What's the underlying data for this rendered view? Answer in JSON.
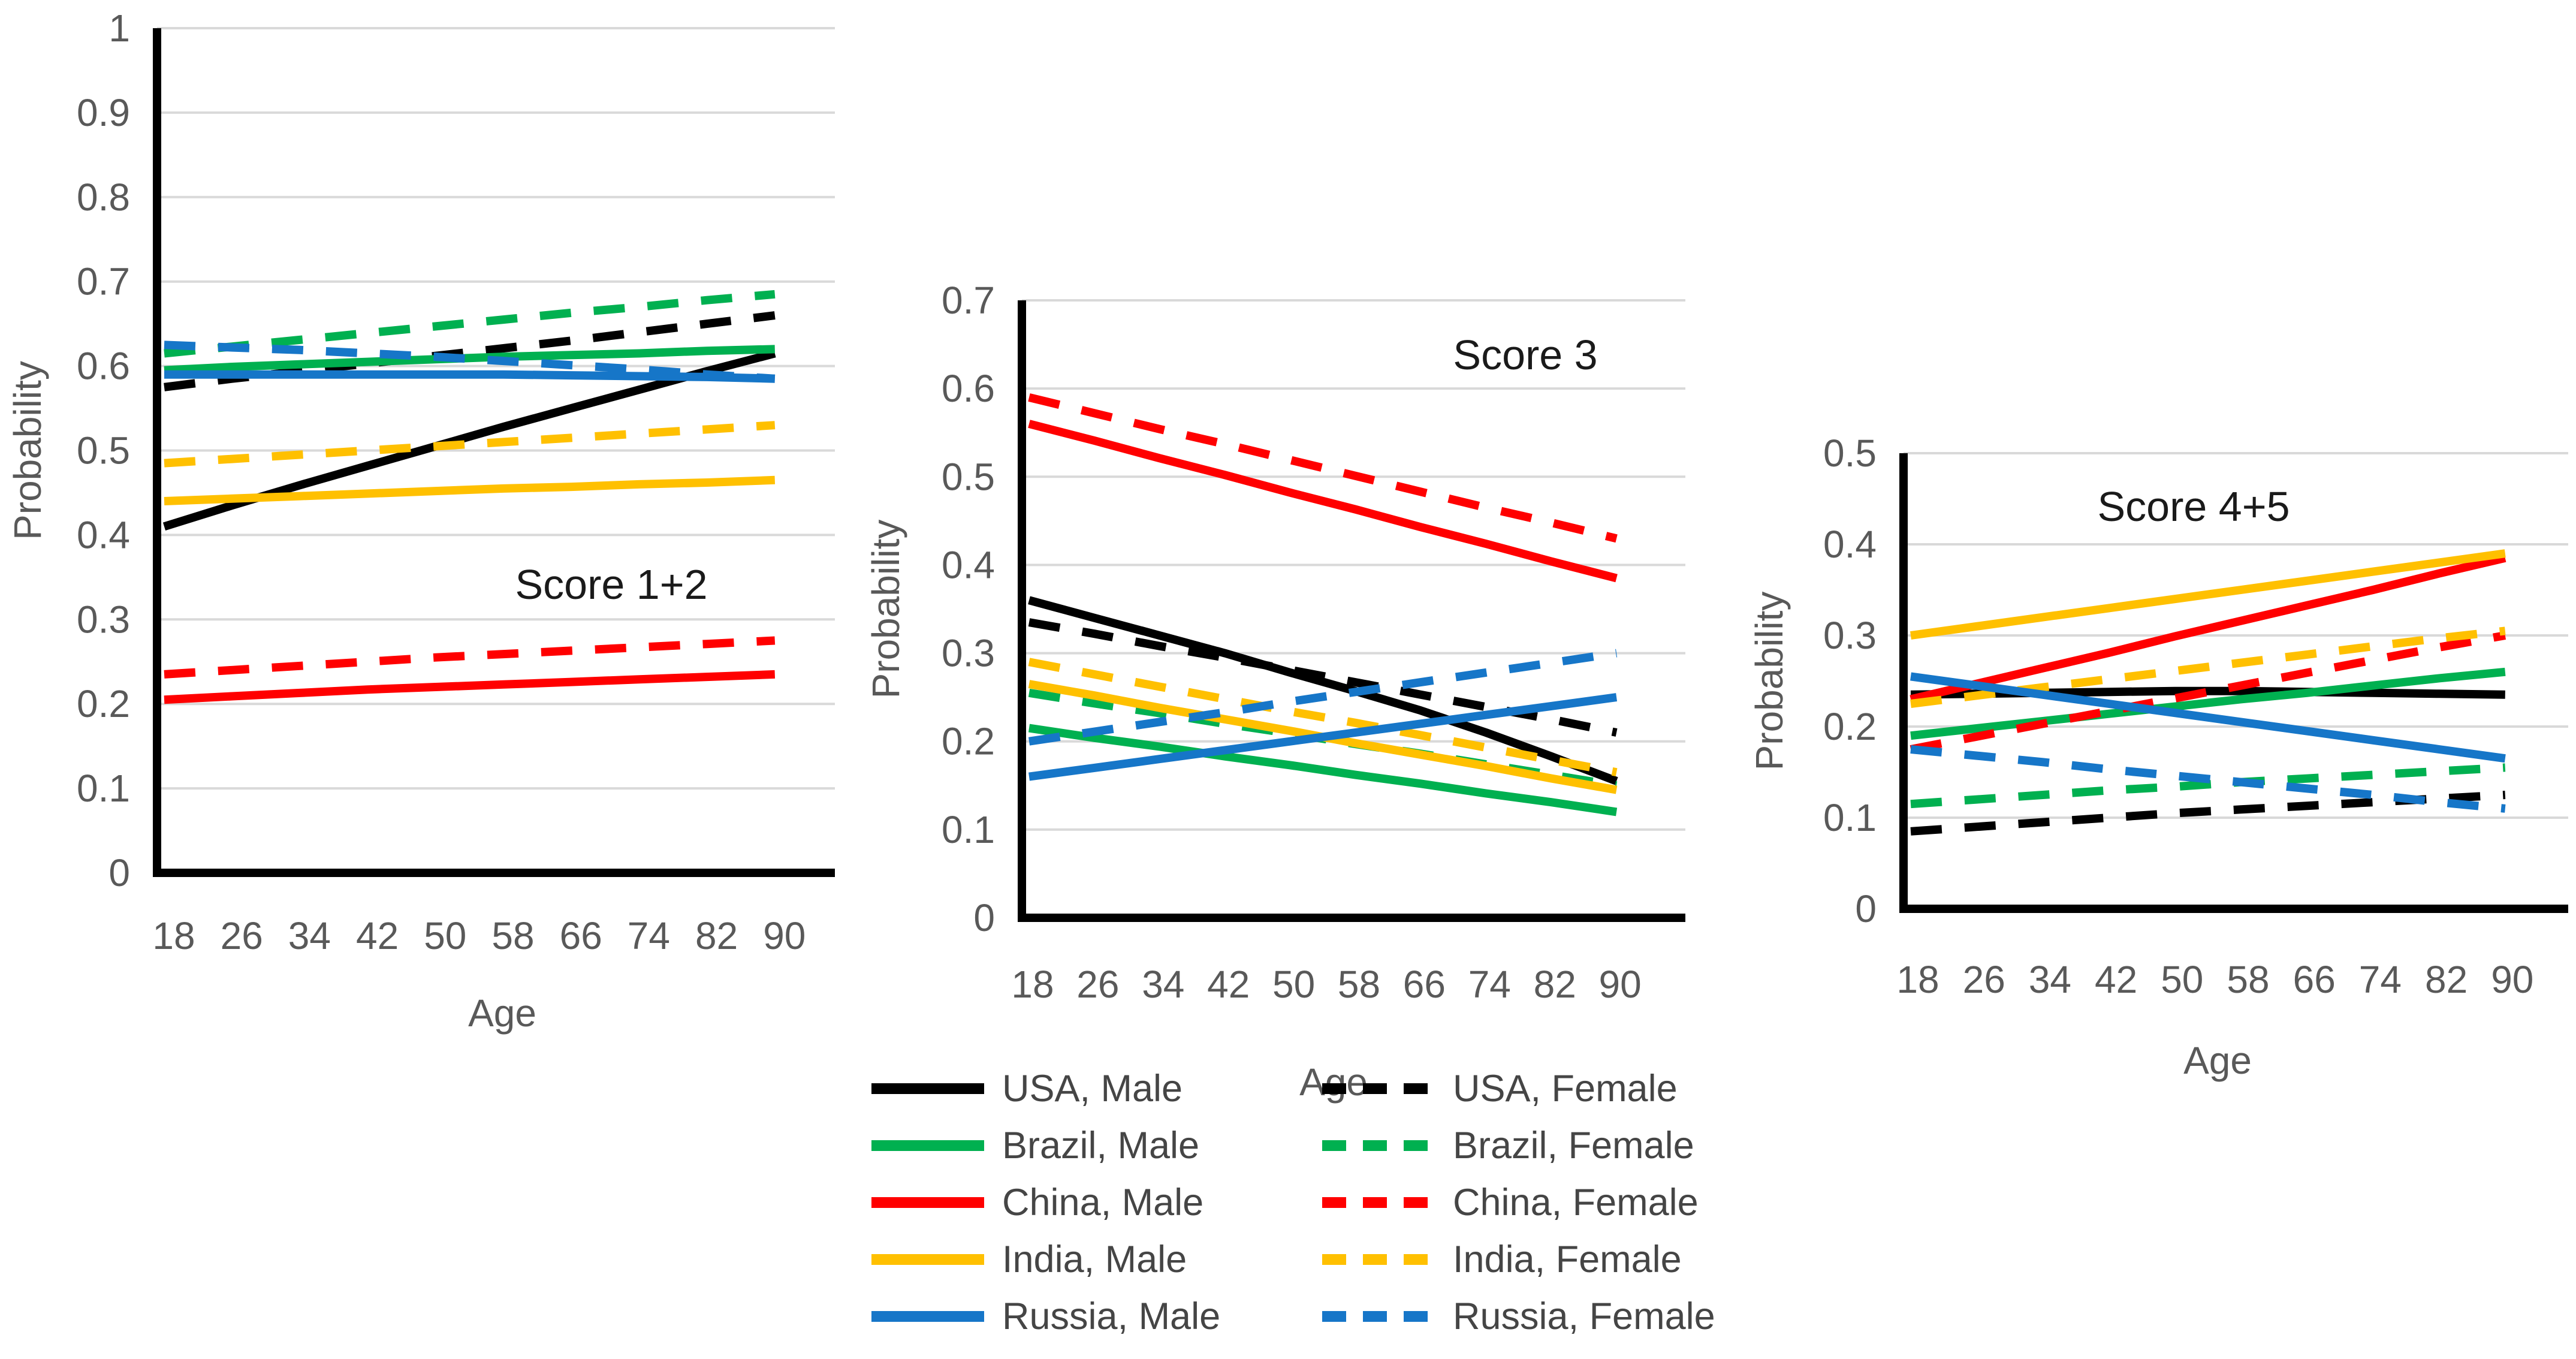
{
  "figure": {
    "background": "#ffffff",
    "gridline_color": "#d9d9d9",
    "axis_line_color": "#000000",
    "tick_label_color": "#595959",
    "title_color": "#1a1a1a",
    "legend_text_color": "#454545"
  },
  "chart_data": [
    {
      "type": "line",
      "title": "Score 1+2",
      "xlabel": "Age",
      "ylabel": "Probability",
      "x": [
        18,
        26,
        34,
        42,
        50,
        58,
        66,
        74,
        82,
        90
      ],
      "ylim": [
        0,
        1
      ],
      "ytick_labels": [
        "0",
        "0.1",
        "0.2",
        "0.3",
        "0.4",
        "0.5",
        "0.6",
        "0.7",
        "0.8",
        "0.9",
        "1"
      ],
      "grid": true,
      "legend_position": "below-figure",
      "series": [
        {
          "name": "USA, Male",
          "color": "#000000",
          "dash": false,
          "values": [
            0.41,
            0.435,
            0.459,
            0.482,
            0.505,
            0.528,
            0.55,
            0.572,
            0.594,
            0.615
          ]
        },
        {
          "name": "USA, Female",
          "color": "#000000",
          "dash": true,
          "values": [
            0.575,
            0.585,
            0.594,
            0.603,
            0.612,
            0.621,
            0.63,
            0.64,
            0.65,
            0.66
          ]
        },
        {
          "name": "Brazil, Male",
          "color": "#00B050",
          "dash": false,
          "values": [
            0.595,
            0.599,
            0.602,
            0.605,
            0.608,
            0.611,
            0.613,
            0.615,
            0.618,
            0.62
          ]
        },
        {
          "name": "Brazil, Female",
          "color": "#00B050",
          "dash": true,
          "values": [
            0.615,
            0.623,
            0.631,
            0.639,
            0.647,
            0.655,
            0.663,
            0.67,
            0.678,
            0.685
          ]
        },
        {
          "name": "China, Male",
          "color": "#FF0000",
          "dash": false,
          "values": [
            0.205,
            0.209,
            0.213,
            0.217,
            0.22,
            0.223,
            0.226,
            0.229,
            0.232,
            0.235
          ]
        },
        {
          "name": "China, Female",
          "color": "#FF0000",
          "dash": true,
          "values": [
            0.235,
            0.24,
            0.245,
            0.25,
            0.255,
            0.259,
            0.263,
            0.267,
            0.271,
            0.275
          ]
        },
        {
          "name": "India, Male",
          "color": "#FFC000",
          "dash": false,
          "values": [
            0.44,
            0.443,
            0.446,
            0.449,
            0.452,
            0.455,
            0.457,
            0.46,
            0.462,
            0.465
          ]
        },
        {
          "name": "India, Female",
          "color": "#FFC000",
          "dash": true,
          "values": [
            0.485,
            0.49,
            0.495,
            0.5,
            0.505,
            0.51,
            0.515,
            0.52,
            0.525,
            0.53
          ]
        },
        {
          "name": "Russia, Male",
          "color": "#1676C8",
          "dash": false,
          "values": [
            0.59,
            0.59,
            0.59,
            0.59,
            0.59,
            0.59,
            0.589,
            0.588,
            0.587,
            0.585
          ]
        },
        {
          "name": "Russia, Female",
          "color": "#1676C8",
          "dash": true,
          "values": [
            0.625,
            0.622,
            0.619,
            0.615,
            0.611,
            0.606,
            0.601,
            0.596,
            0.59,
            0.585
          ]
        }
      ]
    },
    {
      "type": "line",
      "title": "Score 3",
      "xlabel": "Age",
      "ylabel": "Probability",
      "x": [
        18,
        26,
        34,
        42,
        50,
        58,
        66,
        74,
        82,
        90
      ],
      "ylim": [
        0,
        0.7
      ],
      "ytick_labels": [
        "0",
        "0.1",
        "0.2",
        "0.3",
        "0.4",
        "0.5",
        "0.6",
        "0.7"
      ],
      "grid": true,
      "legend_position": "below-figure",
      "series": [
        {
          "name": "USA, Male",
          "color": "#000000",
          "dash": false,
          "values": [
            0.36,
            0.34,
            0.32,
            0.3,
            0.278,
            0.257,
            0.235,
            0.21,
            0.183,
            0.155
          ]
        },
        {
          "name": "USA, Female",
          "color": "#000000",
          "dash": true,
          "values": [
            0.335,
            0.322,
            0.308,
            0.295,
            0.281,
            0.267,
            0.253,
            0.239,
            0.225,
            0.21
          ]
        },
        {
          "name": "Brazil, Male",
          "color": "#00B050",
          "dash": false,
          "values": [
            0.215,
            0.204,
            0.194,
            0.183,
            0.173,
            0.162,
            0.152,
            0.141,
            0.131,
            0.12
          ]
        },
        {
          "name": "Brazil, Female",
          "color": "#00B050",
          "dash": true,
          "values": [
            0.255,
            0.243,
            0.232,
            0.22,
            0.209,
            0.197,
            0.186,
            0.174,
            0.162,
            0.15
          ]
        },
        {
          "name": "China, Male",
          "color": "#FF0000",
          "dash": false,
          "values": [
            0.56,
            0.541,
            0.521,
            0.502,
            0.482,
            0.463,
            0.443,
            0.424,
            0.404,
            0.385
          ]
        },
        {
          "name": "China, Female",
          "color": "#FF0000",
          "dash": true,
          "values": [
            0.59,
            0.572,
            0.554,
            0.537,
            0.519,
            0.501,
            0.483,
            0.465,
            0.448,
            0.43
          ]
        },
        {
          "name": "India, Male",
          "color": "#FFC000",
          "dash": false,
          "values": [
            0.265,
            0.252,
            0.238,
            0.225,
            0.212,
            0.198,
            0.185,
            0.172,
            0.158,
            0.145
          ]
        },
        {
          "name": "India, Female",
          "color": "#FFC000",
          "dash": true,
          "values": [
            0.29,
            0.276,
            0.262,
            0.248,
            0.234,
            0.221,
            0.207,
            0.193,
            0.179,
            0.165
          ]
        },
        {
          "name": "Russia, Male",
          "color": "#1676C8",
          "dash": false,
          "values": [
            0.16,
            0.17,
            0.18,
            0.19,
            0.2,
            0.21,
            0.22,
            0.23,
            0.24,
            0.25
          ]
        },
        {
          "name": "Russia, Female",
          "color": "#1676C8",
          "dash": true,
          "values": [
            0.2,
            0.211,
            0.222,
            0.233,
            0.245,
            0.256,
            0.267,
            0.278,
            0.289,
            0.3
          ]
        }
      ]
    },
    {
      "type": "line",
      "title": "Score 4+5",
      "xlabel": "Age",
      "ylabel": "Probability",
      "x": [
        18,
        26,
        34,
        42,
        50,
        58,
        66,
        74,
        82,
        90
      ],
      "ylim": [
        0,
        0.5
      ],
      "ytick_labels": [
        "0",
        "0.1",
        "0.2",
        "0.3",
        "0.4",
        "0.5"
      ],
      "grid": true,
      "legend_position": "below-figure",
      "series": [
        {
          "name": "USA, Male",
          "color": "#000000",
          "dash": false,
          "values": [
            0.235,
            0.236,
            0.237,
            0.238,
            0.239,
            0.239,
            0.238,
            0.237,
            0.236,
            0.235
          ]
        },
        {
          "name": "USA, Female",
          "color": "#000000",
          "dash": true,
          "values": [
            0.085,
            0.09,
            0.095,
            0.1,
            0.105,
            0.109,
            0.113,
            0.117,
            0.121,
            0.125
          ]
        },
        {
          "name": "Brazil, Male",
          "color": "#00B050",
          "dash": false,
          "values": [
            0.19,
            0.198,
            0.206,
            0.214,
            0.222,
            0.23,
            0.237,
            0.245,
            0.253,
            0.26
          ]
        },
        {
          "name": "Brazil, Female",
          "color": "#00B050",
          "dash": true,
          "values": [
            0.115,
            0.12,
            0.125,
            0.13,
            0.134,
            0.139,
            0.143,
            0.147,
            0.151,
            0.155
          ]
        },
        {
          "name": "China, Male",
          "color": "#FF0000",
          "dash": false,
          "values": [
            0.23,
            0.247,
            0.264,
            0.281,
            0.299,
            0.316,
            0.333,
            0.35,
            0.368,
            0.385
          ]
        },
        {
          "name": "China, Female",
          "color": "#FF0000",
          "dash": true,
          "values": [
            0.175,
            0.189,
            0.203,
            0.217,
            0.231,
            0.245,
            0.259,
            0.273,
            0.287,
            0.3
          ]
        },
        {
          "name": "India, Male",
          "color": "#FFC000",
          "dash": false,
          "values": [
            0.3,
            0.31,
            0.32,
            0.33,
            0.34,
            0.35,
            0.36,
            0.37,
            0.38,
            0.39
          ]
        },
        {
          "name": "India, Female",
          "color": "#FFC000",
          "dash": true,
          "values": [
            0.225,
            0.234,
            0.243,
            0.252,
            0.261,
            0.27,
            0.279,
            0.288,
            0.297,
            0.305
          ]
        },
        {
          "name": "Russia, Male",
          "color": "#1676C8",
          "dash": false,
          "values": [
            0.255,
            0.245,
            0.235,
            0.225,
            0.215,
            0.205,
            0.195,
            0.185,
            0.175,
            0.165
          ]
        },
        {
          "name": "Russia, Female",
          "color": "#1676C8",
          "dash": true,
          "values": [
            0.175,
            0.168,
            0.161,
            0.153,
            0.146,
            0.139,
            0.132,
            0.125,
            0.117,
            0.11
          ]
        }
      ]
    }
  ],
  "legend": {
    "entries": [
      {
        "label": "USA, Male",
        "color": "#000000",
        "dash": false
      },
      {
        "label": "USA, Female",
        "color": "#000000",
        "dash": true
      },
      {
        "label": "Brazil, Male",
        "color": "#00B050",
        "dash": false
      },
      {
        "label": "Brazil, Female",
        "color": "#00B050",
        "dash": true
      },
      {
        "label": "China, Male",
        "color": "#FF0000",
        "dash": false
      },
      {
        "label": "China, Female",
        "color": "#FF0000",
        "dash": true
      },
      {
        "label": "India, Male",
        "color": "#FFC000",
        "dash": false
      },
      {
        "label": "India, Female",
        "color": "#FFC000",
        "dash": true
      },
      {
        "label": "Russia, Male",
        "color": "#1676C8",
        "dash": false
      },
      {
        "label": "Russia, Female",
        "color": "#1676C8",
        "dash": true
      }
    ]
  }
}
